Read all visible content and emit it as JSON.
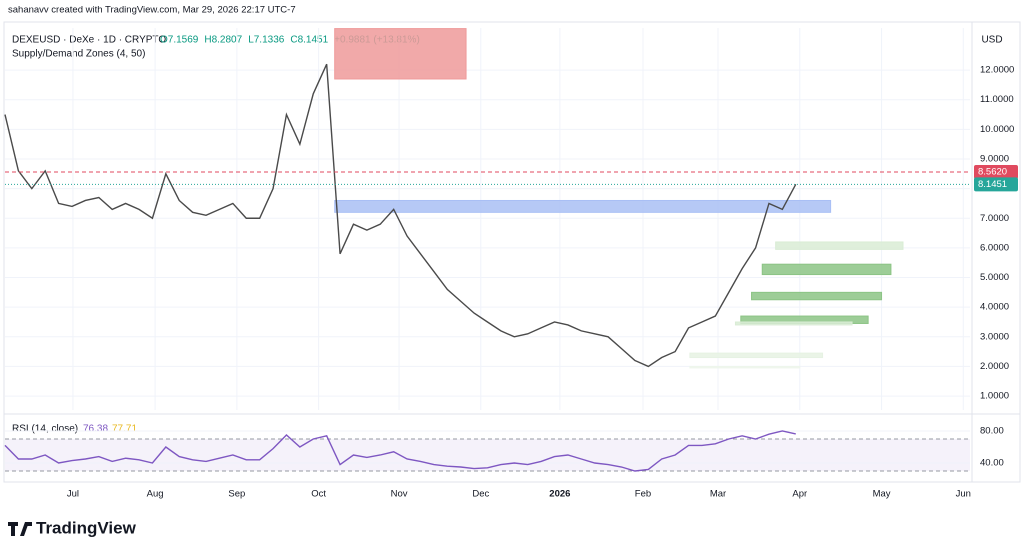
{
  "header": {
    "credit": "sahanavv created with TradingView.com, Mar 29, 2026 22:17 UTC-7",
    "symbol": "DEXEUSD · DeXe · 1D · CRYPTO",
    "ohlc": [
      "O7.1569",
      "H8.2807",
      "L7.1336",
      "C8.1451",
      "+0.9881 (+13.81%)"
    ],
    "indicator": "Supply/Demand Zones (4, 50)",
    "currency": "USD",
    "rsi_label": "RSI (14, close)",
    "rsi_value": "76.38",
    "rsi_ma": "77.71",
    "brand": "TradingView"
  },
  "chart_data": [
    {
      "type": "line",
      "color": "#26a69a",
      "series": [
        {
          "color": "#4a4a4a",
          "values": [
            10.5,
            8.6,
            8.0,
            8.6,
            7.5,
            7.4,
            7.6,
            7.7,
            7.3,
            7.5,
            7.3,
            7.0,
            8.5,
            7.6,
            7.2,
            7.1,
            7.3,
            7.5,
            7.0,
            7.0,
            8.0,
            10.5,
            9.5,
            11.2,
            12.2,
            5.8,
            6.8,
            6.6,
            6.8,
            7.3,
            6.4,
            5.8,
            5.2,
            4.6,
            4.2,
            3.8,
            3.5,
            3.2,
            3.0,
            3.1,
            3.3,
            3.5,
            3.4,
            3.2,
            3.1,
            3.0,
            2.6,
            2.2,
            2.0,
            2.3,
            2.5,
            3.3,
            3.5,
            3.7,
            4.5,
            5.3,
            6.0,
            7.5,
            7.3,
            8.1451
          ]
        }
      ],
      "xlim": [
        0,
        72
      ],
      "xticks": [
        {
          "value": 5.07,
          "label": "Jul"
        },
        {
          "value": 11.2,
          "label": "Aug"
        },
        {
          "value": 17.3,
          "label": "Sep"
        },
        {
          "value": 23.4,
          "label": "Oct"
        },
        {
          "value": 29.4,
          "label": "Nov"
        },
        {
          "value": 35.5,
          "label": "Dec"
        },
        {
          "value": 41.4,
          "label": "2026"
        },
        {
          "value": 47.6,
          "label": "Feb"
        },
        {
          "value": 53.2,
          "label": "Mar"
        },
        {
          "value": 59.3,
          "label": "Apr"
        },
        {
          "value": 65.4,
          "label": "May"
        },
        {
          "value": 71.5,
          "label": "Jun"
        }
      ],
      "ylim": [
        0.53,
        13.42
      ],
      "yticks": [
        {
          "value": 1,
          "label": "1.0000"
        },
        {
          "value": 2,
          "label": "2.0000"
        },
        {
          "value": 3,
          "label": "3.0000"
        },
        {
          "value": 4,
          "label": "4.0000"
        },
        {
          "value": 5,
          "label": "5.0000"
        },
        {
          "value": 6,
          "label": "6.0000"
        },
        {
          "value": 7,
          "label": "7.0000"
        },
        {
          "value": 8,
          "label": "8.0000"
        },
        {
          "value": 9,
          "label": "9.0000"
        },
        {
          "value": 10,
          "label": "10.0000"
        },
        {
          "value": 11,
          "label": "11.0000"
        },
        {
          "value": 12,
          "label": "12.0000"
        }
      ],
      "zones": [
        {
          "top": 13.4,
          "bottom": 11.7,
          "start": 24.6,
          "end": 34.4,
          "color": "#ef9a9a"
        },
        {
          "top": 7.6,
          "bottom": 7.2,
          "start": 24.6,
          "end": 61.6,
          "color": "#a9bff5"
        },
        {
          "top": 6.2,
          "bottom": 5.95,
          "start": 57.5,
          "end": 67.0,
          "color": "#d9ecd5"
        },
        {
          "top": 5.45,
          "bottom": 5.1,
          "start": 56.5,
          "end": 66.1,
          "color": "#8cc485"
        },
        {
          "top": 4.5,
          "bottom": 4.25,
          "start": 55.7,
          "end": 65.4,
          "color": "#8cc485"
        },
        {
          "top": 3.7,
          "bottom": 3.45,
          "start": 54.9,
          "end": 64.4,
          "color": "#8cc485"
        },
        {
          "top": 3.5,
          "bottom": 3.4,
          "start": 54.5,
          "end": 63.2,
          "color": "#d9ecd5"
        },
        {
          "top": 2.45,
          "bottom": 2.3,
          "start": 51.1,
          "end": 61.0,
          "color": "#e6f2e3"
        },
        {
          "top": 2.0,
          "bottom": 1.95,
          "start": 51.1,
          "end": 59.3,
          "color": "#eef6ec"
        }
      ],
      "price_lines": [
        {
          "value": 8.562,
          "label": "8.5620",
          "color": "#e04a5f"
        },
        {
          "value": 8.1451,
          "label": "8.1451",
          "color": "#26a69a"
        }
      ]
    },
    {
      "type": "line",
      "series": [
        {
          "color": "#7e57c2",
          "values": [
            62,
            45,
            45,
            50,
            40,
            43,
            45,
            48,
            42,
            46,
            44,
            40,
            60,
            48,
            44,
            42,
            46,
            50,
            44,
            44,
            58,
            75,
            60,
            70,
            74,
            38,
            50,
            47,
            50,
            54,
            45,
            42,
            38,
            36,
            35,
            33,
            34,
            38,
            40,
            38,
            42,
            48,
            50,
            45,
            40,
            38,
            35,
            30,
            32,
            45,
            50,
            62,
            62,
            64,
            70,
            74,
            70,
            76,
            80,
            76.38
          ]
        }
      ],
      "xlim": [
        0,
        72
      ],
      "ylim": [
        21.25,
        93.75
      ],
      "yticks": [
        {
          "value": 40,
          "label": "40.00"
        },
        {
          "value": 80,
          "label": "80.00"
        }
      ],
      "band": [
        30,
        70
      ]
    }
  ]
}
